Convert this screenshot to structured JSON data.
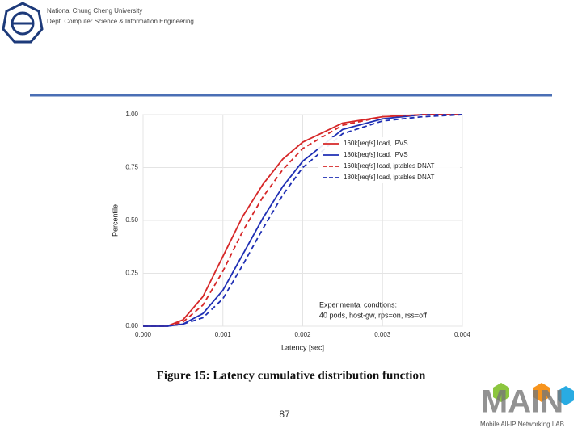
{
  "header": {
    "university": "National Chung Cheng University",
    "department": "Dept. Computer Science & Information Engineering"
  },
  "caption": "Figure 15: Latency cumulative distribution function",
  "page_number": "87",
  "logo": {
    "title": "MAIN",
    "subtitle": "Mobile All-IP Networking LAB"
  },
  "chart_data": {
    "type": "line",
    "xlabel": "Latency [sec]",
    "ylabel": "Percentile",
    "annotation": [
      "Experimental condtions:",
      "40 pods, host-gw, rps=on, rss=off"
    ],
    "x": [
      0,
      0.0003,
      0.0005,
      0.00075,
      0.001,
      0.00125,
      0.0015,
      0.00175,
      0.002,
      0.0025,
      0.003,
      0.0035,
      0.004
    ],
    "series": [
      {
        "name": "160k[req/s] load, IPVS",
        "color": "#d62728",
        "dashed": false,
        "values": [
          0,
          0,
          0.03,
          0.14,
          0.33,
          0.52,
          0.67,
          0.79,
          0.87,
          0.96,
          0.99,
          1,
          1
        ]
      },
      {
        "name": "180k[req/s] load, IPVS",
        "color": "#1f2fb4",
        "dashed": false,
        "values": [
          0,
          0,
          0.01,
          0.06,
          0.17,
          0.34,
          0.51,
          0.66,
          0.78,
          0.93,
          0.98,
          1,
          1
        ]
      },
      {
        "name": "160k[req/s] load, iptables DNAT",
        "color": "#d62728",
        "dashed": true,
        "values": [
          0,
          0,
          0.02,
          0.1,
          0.26,
          0.45,
          0.61,
          0.74,
          0.84,
          0.95,
          0.99,
          1,
          1
        ]
      },
      {
        "name": "180k[req/s] load, iptables DNAT",
        "color": "#1f2fb4",
        "dashed": true,
        "values": [
          0,
          0,
          0.01,
          0.04,
          0.13,
          0.29,
          0.46,
          0.62,
          0.75,
          0.91,
          0.97,
          0.99,
          1
        ]
      }
    ],
    "xlim": [
      0,
      0.004
    ],
    "xticks": [
      {
        "value": 0,
        "label": "0.000"
      },
      {
        "value": 0.001,
        "label": "0.001"
      },
      {
        "value": 0.002,
        "label": "0.002"
      },
      {
        "value": 0.003,
        "label": "0.003"
      },
      {
        "value": 0.004,
        "label": "0.004"
      }
    ],
    "ylim": [
      0,
      1
    ],
    "yticks": [
      {
        "value": 0,
        "label": "0.00"
      },
      {
        "value": 0.25,
        "label": "0.25"
      },
      {
        "value": 0.5,
        "label": "0.50"
      },
      {
        "value": 0.75,
        "label": "0.75"
      },
      {
        "value": 1,
        "label": "1.00"
      }
    ],
    "grid": true
  }
}
